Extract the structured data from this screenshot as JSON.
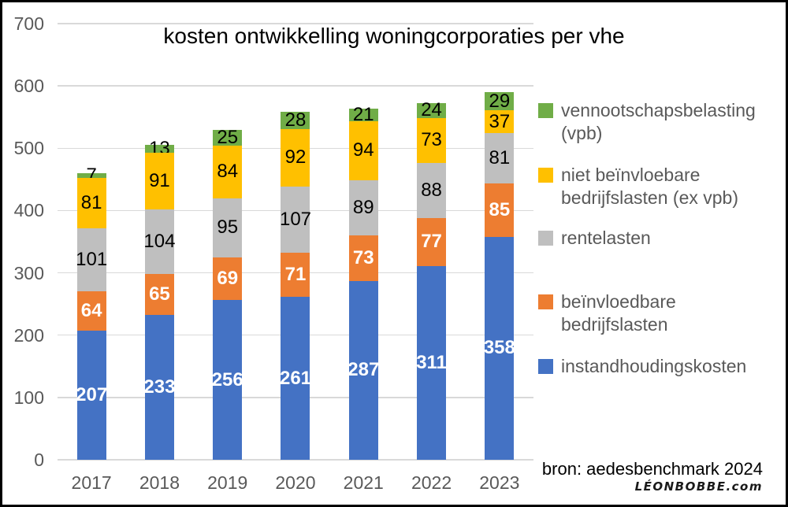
{
  "chart_data": {
    "type": "bar",
    "stacked": true,
    "title": "kosten ontwikkelling woningcorporaties per vhe",
    "categories": [
      "2017",
      "2018",
      "2019",
      "2020",
      "2021",
      "2022",
      "2023"
    ],
    "series": [
      {
        "name": "instandhoudingskosten",
        "color": "#4472C4",
        "label_color": "#FFFFFF",
        "label_bold": true,
        "values": [
          207,
          233,
          256,
          261,
          287,
          311,
          358
        ]
      },
      {
        "name": "beïnvloedbare bedrijfslasten",
        "color": "#ED7D31",
        "label_color": "#FFFFFF",
        "label_bold": true,
        "values": [
          64,
          65,
          69,
          71,
          73,
          77,
          85
        ]
      },
      {
        "name": "rentelasten",
        "color": "#BFBFBF",
        "label_color": "#000000",
        "label_bold": false,
        "values": [
          101,
          104,
          95,
          107,
          89,
          88,
          81
        ]
      },
      {
        "name": "niet beïnvloebare bedrijfslasten (ex vpb)",
        "color": "#FFC000",
        "label_color": "#000000",
        "label_bold": false,
        "values": [
          81,
          91,
          84,
          92,
          94,
          73,
          37
        ]
      },
      {
        "name": "vennootschapsbelasting (vpb)",
        "color": "#70AD47",
        "label_color": "#000000",
        "label_bold": false,
        "values": [
          7,
          13,
          25,
          28,
          21,
          24,
          29
        ]
      }
    ],
    "totals": [
      460,
      506,
      529,
      559,
      564,
      573,
      590
    ],
    "y_axis": {
      "min": 0,
      "max": 700,
      "step": 100,
      "ticks": [
        700,
        600,
        500,
        400,
        300,
        200,
        100,
        0
      ]
    },
    "grid": true,
    "legend_position": "right",
    "legend_order_top_to_bottom": [
      "vennootschapsbelasting (vpb)",
      "niet beïnvloebare bedrijfslasten (ex vpb)",
      "rentelasten",
      "beïnvloedbare bedrijfslasten",
      "instandhoudingskosten"
    ],
    "source": "bron: aedesbenchmark 2024",
    "watermark": "LÉONBOBBE.com",
    "colors": {
      "gridline": "#D9D9D9",
      "axis_text": "#595959",
      "legend_text": "#595959",
      "title_text": "#000000",
      "frame_border": "#000000"
    }
  }
}
